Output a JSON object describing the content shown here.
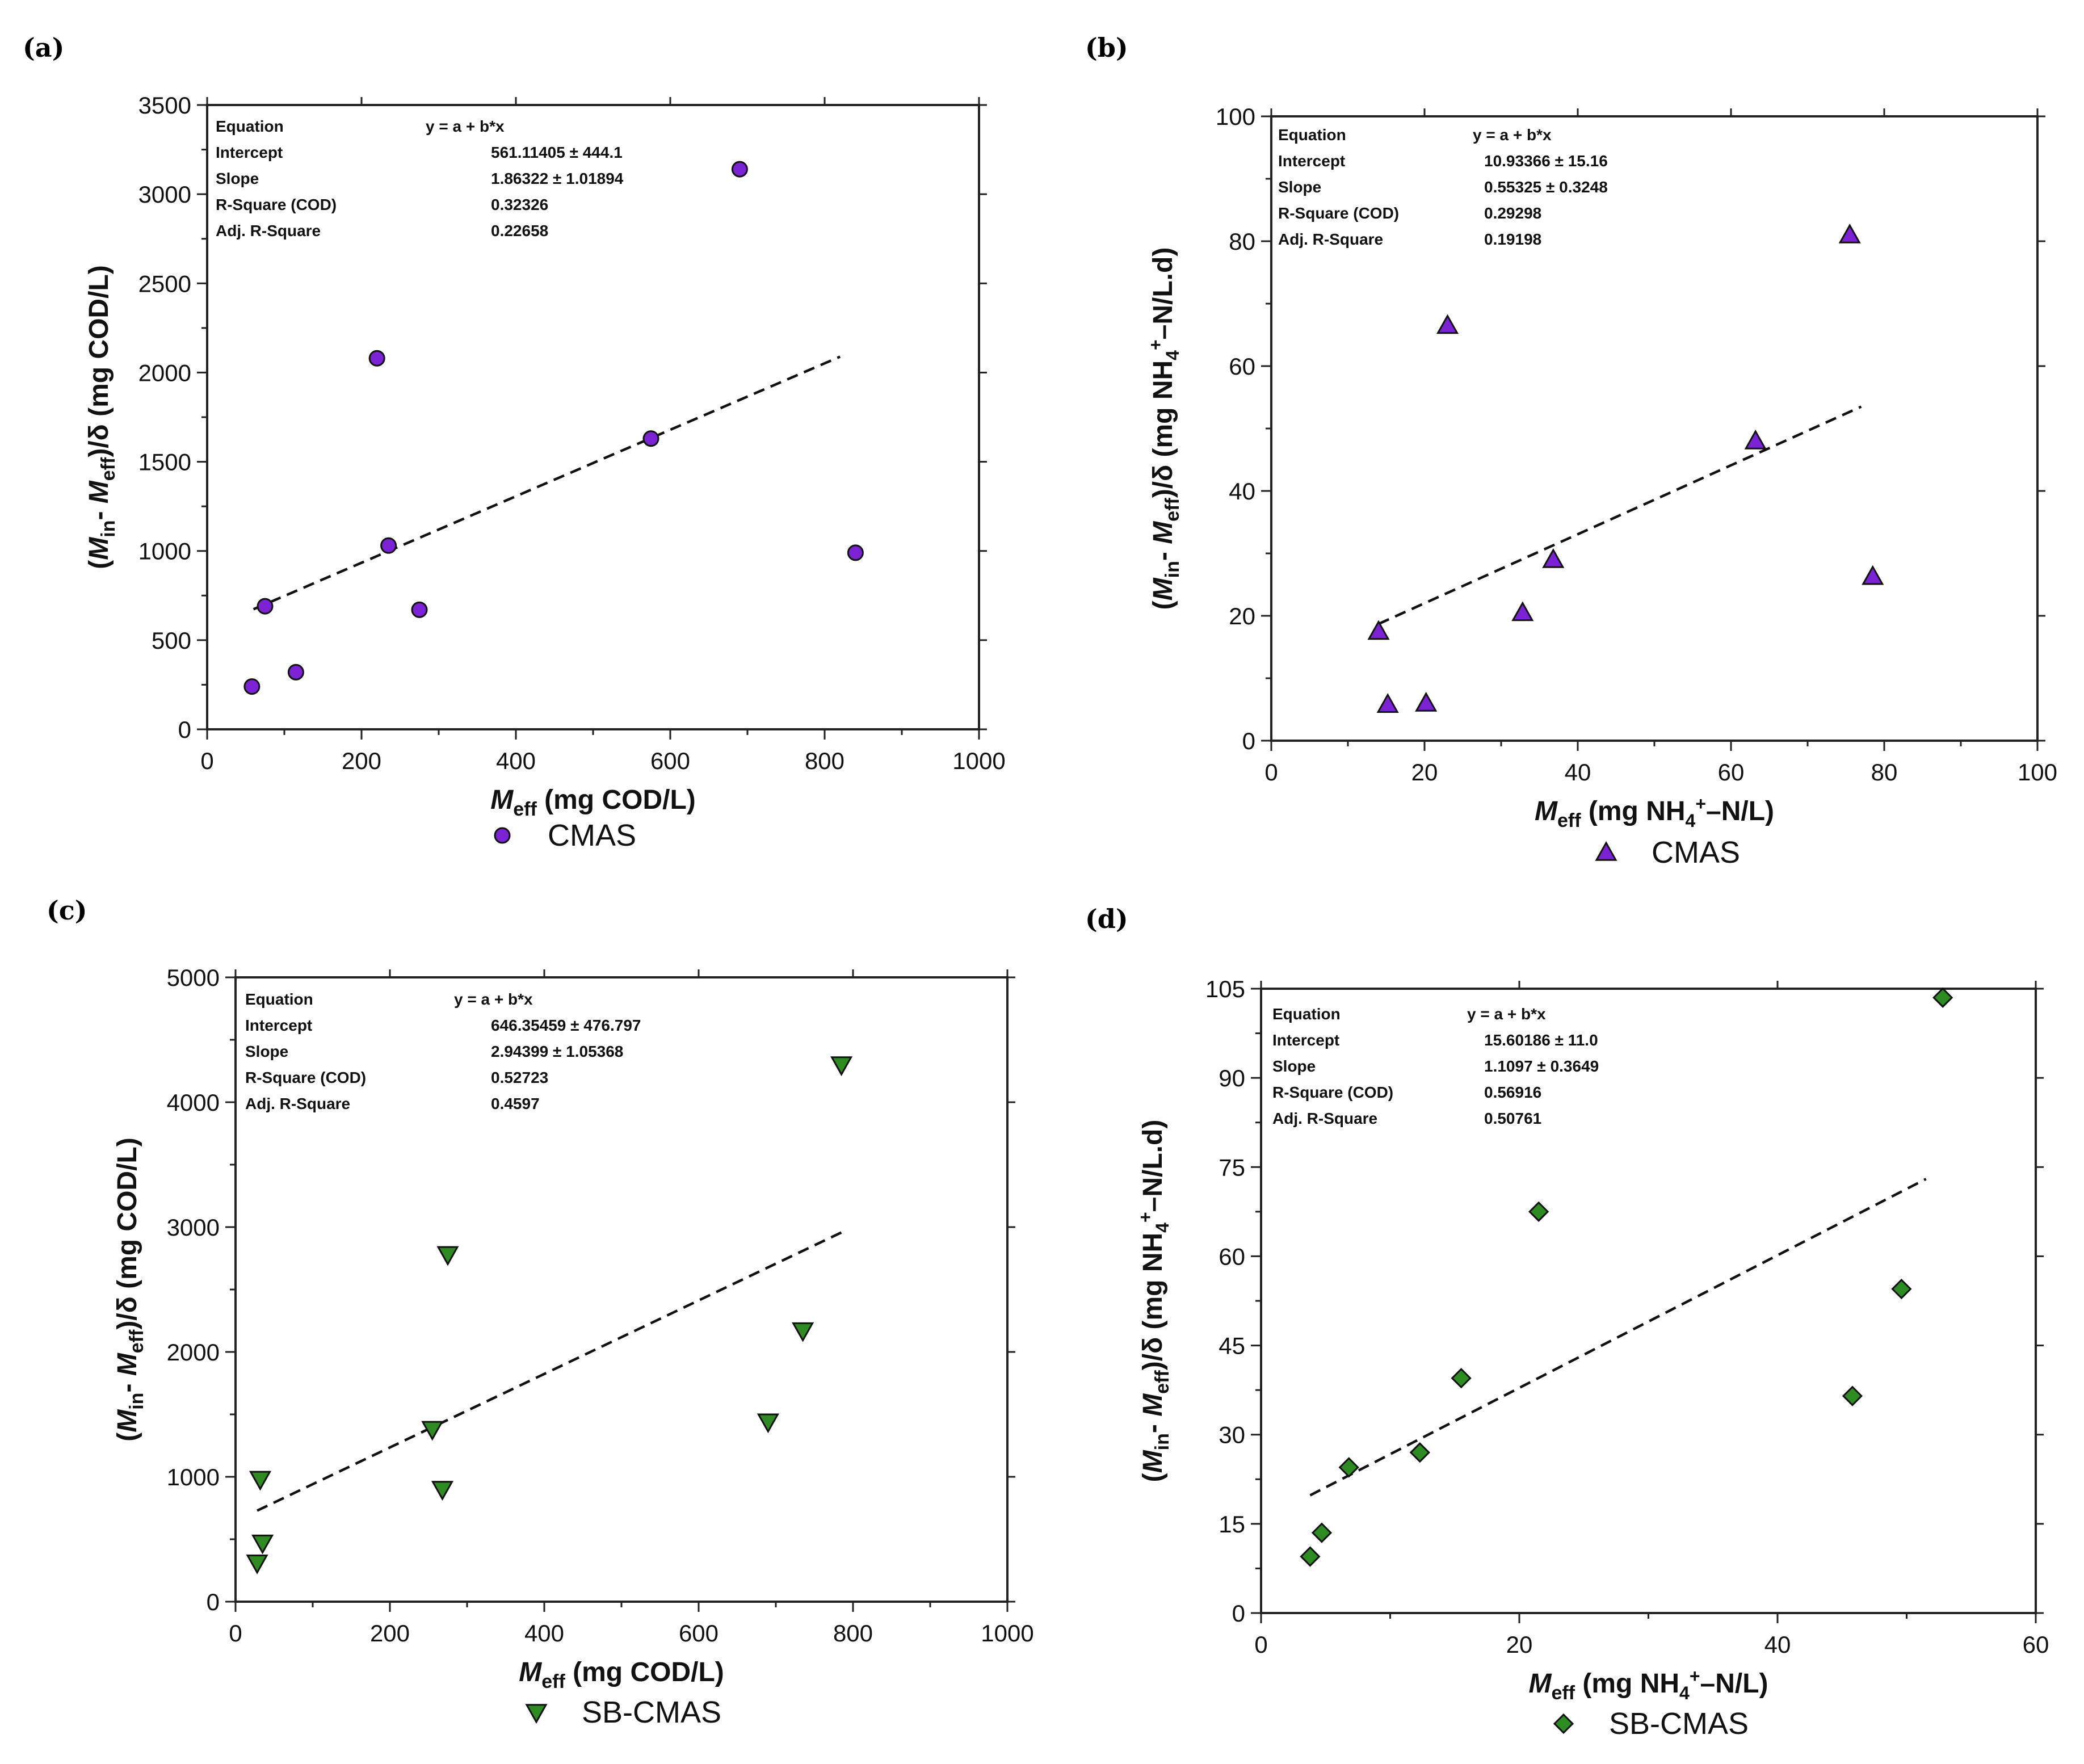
{
  "colors": {
    "cmas": "#7b22d4",
    "sbcmas": "#2e8b22"
  },
  "chart_data": [
    {
      "panel": "(a)",
      "type": "scatter",
      "marker": "circle",
      "series_color": "#7b22d4",
      "x": [
        58,
        75,
        115,
        220,
        235,
        275,
        575,
        690,
        840
      ],
      "y": [
        240,
        690,
        320,
        2080,
        1030,
        670,
        1630,
        3140,
        990
      ],
      "xlim": [
        0,
        1000
      ],
      "ylim": [
        0,
        3500
      ],
      "xticks": [
        0,
        200,
        400,
        600,
        800,
        1000
      ],
      "yticks": [
        0,
        500,
        1000,
        1500,
        2000,
        2500,
        3000,
        3500
      ],
      "fit": {
        "x": [
          60,
          820
        ],
        "y": [
          673,
          2089
        ]
      },
      "legend": {
        "label": "CMAS"
      },
      "xlabel": {
        "main": "M",
        "sub": "eff",
        "rest": " (mg COD/L)"
      },
      "ylabel": "(Min- Meff)/δ (mg COD/L)",
      "stats": [
        [
          "Equation",
          "y = a + b*x"
        ],
        [
          "Intercept",
          "561.11405 ± 444.1"
        ],
        [
          "Slope",
          "1.86322 ± 1.01894"
        ],
        [
          "R-Square (COD)",
          "0.32326"
        ],
        [
          "Adj. R-Square",
          "0.22658"
        ]
      ]
    },
    {
      "panel": "(b)",
      "type": "scatter",
      "marker": "triangle-up",
      "series_color": "#7b22d4",
      "x": [
        14,
        15.2,
        20.2,
        23,
        32.8,
        36.8,
        63.2,
        75.5,
        78.5
      ],
      "y": [
        17.5,
        5.8,
        6,
        66.5,
        20.5,
        29,
        48,
        81,
        26.3
      ],
      "xlim": [
        0,
        100
      ],
      "ylim": [
        0,
        100
      ],
      "xticks": [
        0,
        20,
        40,
        60,
        80,
        100
      ],
      "yticks": [
        0,
        20,
        40,
        60,
        80,
        100
      ],
      "fit": {
        "x": [
          14,
          77
        ],
        "y": [
          18.7,
          53.5
        ]
      },
      "legend": {
        "label": "CMAS"
      },
      "xlabel": {
        "main": "M",
        "sub": "eff",
        "rest": " (mg NH4+–N/L)"
      },
      "ylabel": "(Min- Meff)/δ (mg NH4+–N/L.d)",
      "stats": [
        [
          "Equation",
          "y = a + b*x"
        ],
        [
          "Intercept",
          "10.93366 ± 15.16"
        ],
        [
          "Slope",
          "0.55325 ± 0.3248"
        ],
        [
          "R-Square (COD)",
          "0.29298"
        ],
        [
          "Adj. R-Square",
          "0.19198"
        ]
      ]
    },
    {
      "panel": "(c)",
      "type": "scatter",
      "marker": "triangle-down",
      "series_color": "#2e8b22",
      "x": [
        28,
        32,
        35,
        255,
        268,
        275,
        690,
        735,
        785
      ],
      "y": [
        310,
        980,
        470,
        1380,
        900,
        2780,
        1440,
        2170,
        4300
      ],
      "xlim": [
        0,
        1000
      ],
      "ylim": [
        0,
        5000
      ],
      "xticks": [
        0,
        200,
        400,
        600,
        800,
        1000
      ],
      "yticks": [
        0,
        1000,
        2000,
        3000,
        4000,
        5000
      ],
      "fit": {
        "x": [
          28,
          785
        ],
        "y": [
          729,
          2957
        ]
      },
      "legend": {
        "label": "SB-CMAS"
      },
      "xlabel": {
        "main": "M",
        "sub": "eff",
        "rest": " (mg COD/L)"
      },
      "ylabel": "(Min- Meff)/δ (mg COD/L)",
      "stats": [
        [
          "Equation",
          "y = a + b*x"
        ],
        [
          "Intercept",
          "646.35459 ± 476.797"
        ],
        [
          "Slope",
          "2.94399 ± 1.05368"
        ],
        [
          "R-Square (COD)",
          "0.52723"
        ],
        [
          "Adj. R-Square",
          "0.4597"
        ]
      ]
    },
    {
      "panel": "(d)",
      "type": "scatter",
      "marker": "diamond",
      "series_color": "#2e8b22",
      "x": [
        3.8,
        4.7,
        6.8,
        12.3,
        15.5,
        21.5,
        45.8,
        49.6,
        52.8
      ],
      "y": [
        9.5,
        13.5,
        24.5,
        27,
        39.5,
        67.5,
        36.5,
        54.5,
        103.5
      ],
      "xlim": [
        0,
        60
      ],
      "ylim": [
        0,
        105
      ],
      "xticks": [
        0,
        20,
        40,
        60
      ],
      "yticks": [
        0,
        15,
        30,
        45,
        60,
        75,
        90,
        105
      ],
      "fit": {
        "x": [
          3.8,
          51.5
        ],
        "y": [
          19.8,
          73.0
        ]
      },
      "legend": {
        "label": "SB-CMAS"
      },
      "xlabel": {
        "main": "M",
        "sub": "eff",
        "rest": " (mg NH4+–N/L)"
      },
      "ylabel": "(Min- Meff)/δ (mg NH4+–N/L.d)",
      "stats": [
        [
          "Equation",
          "y = a + b*x"
        ],
        [
          "Intercept",
          "15.60186 ± 11.0"
        ],
        [
          "Slope",
          "1.1097 ± 0.3649"
        ],
        [
          "R-Square (COD)",
          "0.56916"
        ],
        [
          "Adj. R-Square",
          "0.50761"
        ]
      ]
    }
  ]
}
